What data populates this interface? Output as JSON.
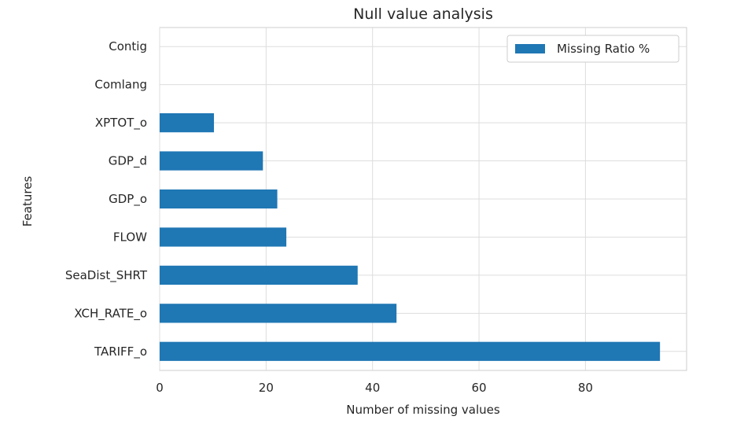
{
  "chart_data": {
    "type": "bar",
    "orientation": "horizontal",
    "title": "Null value analysis",
    "xlabel": "Number of missing values",
    "ylabel": "Features",
    "categories": [
      "TARIFF_o",
      "XCH_RATE_o",
      "SeaDist_SHRT",
      "FLOW",
      "GDP_o",
      "GDP_d",
      "XPTOT_o",
      "Comlang",
      "Contig"
    ],
    "series": [
      {
        "name": "Missing Ratio %",
        "values": [
          94,
          44.5,
          37.2,
          23.8,
          22.1,
          19.4,
          10.2,
          0,
          0
        ]
      }
    ],
    "xlim": [
      0,
      99
    ],
    "xticks": [
      0,
      20,
      40,
      60,
      80
    ],
    "grid": true,
    "legend_position": "top-right",
    "bar_color": "#1f77b4"
  }
}
